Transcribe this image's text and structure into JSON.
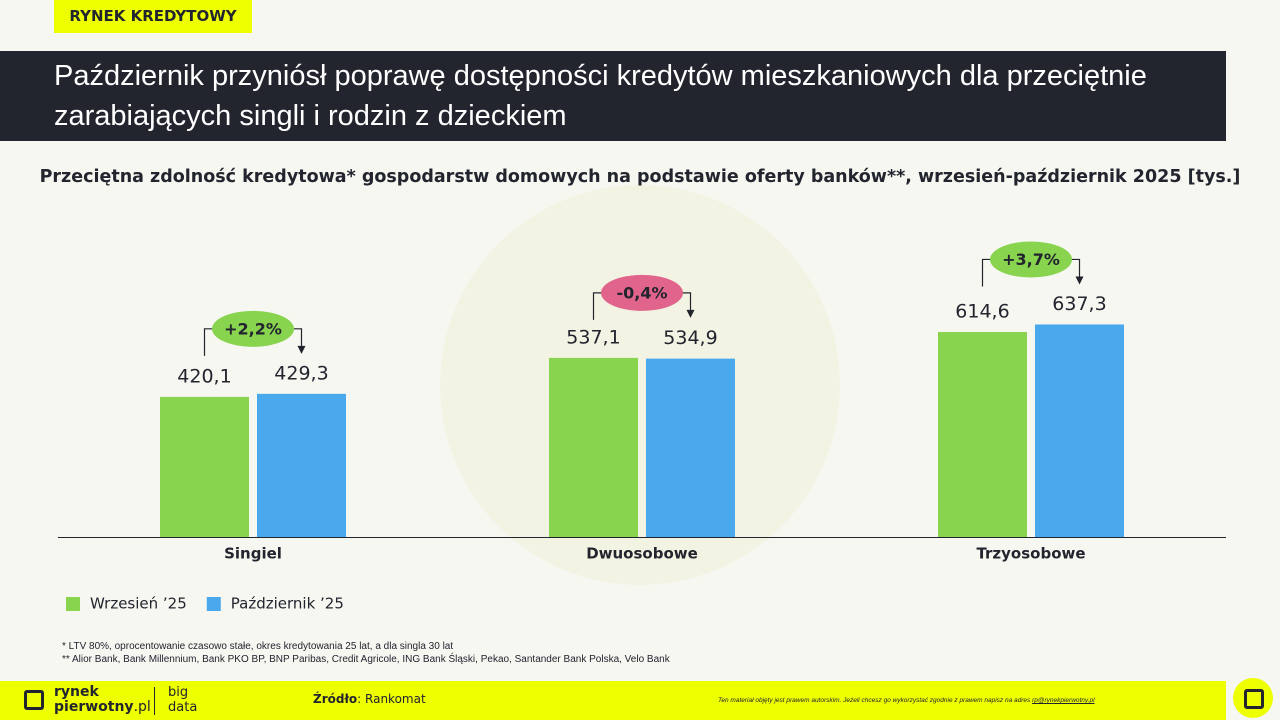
{
  "tag": "RYNEK KREDYTOWY",
  "title": "Październik przyniósł poprawę dostępności kredytów mieszkaniowych dla przeciętnie zarabiających singli i rodzin z dzieckiem",
  "chart_data": {
    "type": "bar",
    "subtitle": "Przeciętna zdolność kredytowa* gospodarstw domowych na podstawie oferty banków**, wrzesień-październik 2025 [tys.]",
    "categories": [
      "Singiel",
      "Dwuosobowe",
      "Trzyosobowe"
    ],
    "series": [
      {
        "name": "Wrzesień ’25",
        "color": "#88d44f",
        "values": [
          420.1,
          537.1,
          614.6
        ],
        "value_labels": [
          "420,1",
          "537,1",
          "614,6"
        ]
      },
      {
        "name": "Październik ’25",
        "color": "#4aa8ec",
        "values": [
          429.3,
          534.9,
          637.3
        ],
        "value_labels": [
          "429,3",
          "534,9",
          "637,3"
        ]
      }
    ],
    "annotations": [
      {
        "text": "+2,2%",
        "color": "#88d44f"
      },
      {
        "text": "-0,4%",
        "color": "#e0648c"
      },
      {
        "text": "+3,7%",
        "color": "#88d44f"
      }
    ]
  },
  "footnotes": [
    "* LTV 80%, oprocentowanie czasowo stałe, okres kredytowania 25 lat, a dla singla 30 lat",
    "** Alior Bank, Bank Millennium, Bank PKO BP, BNP Paribas, Credit Agricole, ING Bank Śląski, Pekao, Santander Bank Polska, Velo Bank"
  ],
  "footer": {
    "logo_line1": "rynek",
    "logo_line2": "pierwotny",
    "logo_domain": ".pl",
    "big": "big",
    "data": "data",
    "source_label": "Źródło",
    "source": ": Rankomat",
    "copyright": "Ten materiał objęty jest prawem autorskim. Jeżeli chcesz go wykorzystać zgodnie z prawem napisz na adres ",
    "email": "rp@rynekpierwotny.pl"
  }
}
